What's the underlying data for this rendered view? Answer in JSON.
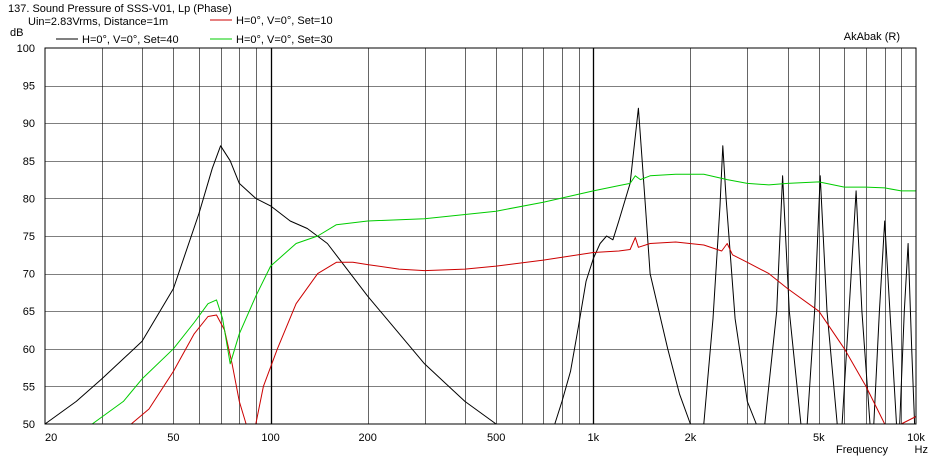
{
  "chart_data": {
    "type": "line",
    "title": "137. Sound Pressure of SSS-V01, Lp (Phase)",
    "subtitle": "Uin=2.83Vrms, Distance=1m",
    "watermark": "AkAbak (R)",
    "ylabel": "dB",
    "xlabel": "Frequency",
    "xunit": "Hz",
    "x_scale": "log",
    "xlim": [
      20,
      10000
    ],
    "ylim": [
      50,
      100
    ],
    "grid": true,
    "legend_position": "top-left",
    "x_tick_labels": [
      {
        "v": 20,
        "label": "20"
      },
      {
        "v": 50,
        "label": "50"
      },
      {
        "v": 100,
        "label": "100"
      },
      {
        "v": 200,
        "label": "200"
      },
      {
        "v": 500,
        "label": "500"
      },
      {
        "v": 1000,
        "label": "1k"
      },
      {
        "v": 2000,
        "label": "2k"
      },
      {
        "v": 5000,
        "label": "5k"
      },
      {
        "v": 10000,
        "label": "10k"
      }
    ],
    "y_ticks": [
      50,
      55,
      60,
      65,
      70,
      75,
      80,
      85,
      90,
      95,
      100
    ],
    "series": [
      {
        "name": "H=0°, V=0°, Set=40",
        "color": "#000000",
        "points": [
          [
            20,
            50
          ],
          [
            25,
            53
          ],
          [
            30,
            56
          ],
          [
            40,
            61
          ],
          [
            50,
            68
          ],
          [
            60,
            78
          ],
          [
            66,
            84
          ],
          [
            70,
            87
          ],
          [
            75,
            85
          ],
          [
            80,
            82
          ],
          [
            90,
            80
          ],
          [
            100,
            79
          ],
          [
            115,
            77
          ],
          [
            130,
            76
          ],
          [
            150,
            74
          ],
          [
            200,
            67
          ],
          [
            300,
            58
          ],
          [
            400,
            53
          ],
          [
            500,
            50
          ],
          [
            760,
            50
          ],
          [
            800,
            53
          ],
          [
            850,
            57
          ],
          [
            900,
            63
          ],
          [
            950,
            69
          ],
          [
            1000,
            72
          ],
          [
            1050,
            74
          ],
          [
            1100,
            75
          ],
          [
            1150,
            74.5
          ],
          [
            1200,
            77
          ],
          [
            1300,
            82
          ],
          [
            1380,
            92
          ],
          [
            1450,
            79
          ],
          [
            1500,
            70
          ],
          [
            1700,
            60
          ],
          [
            1850,
            54
          ],
          [
            2000,
            50
          ],
          [
            2200,
            50
          ],
          [
            2350,
            64
          ],
          [
            2470,
            79
          ],
          [
            2520,
            87
          ],
          [
            2580,
            80
          ],
          [
            2750,
            64
          ],
          [
            3000,
            53
          ],
          [
            3200,
            50
          ],
          [
            3400,
            50
          ],
          [
            3700,
            65
          ],
          [
            3860,
            83
          ],
          [
            4050,
            65
          ],
          [
            4400,
            50
          ],
          [
            4600,
            50
          ],
          [
            4850,
            65
          ],
          [
            5050,
            83
          ],
          [
            5300,
            65
          ],
          [
            5700,
            50
          ],
          [
            5900,
            50
          ],
          [
            6200,
            65
          ],
          [
            6520,
            81
          ],
          [
            6800,
            65
          ],
          [
            7200,
            50
          ],
          [
            7400,
            50
          ],
          [
            7700,
            65
          ],
          [
            8000,
            77
          ],
          [
            8300,
            65
          ],
          [
            8700,
            50
          ],
          [
            8900,
            50
          ],
          [
            9200,
            65
          ],
          [
            9450,
            74
          ],
          [
            9700,
            60
          ],
          [
            9900,
            50
          ],
          [
            10000,
            50
          ]
        ]
      },
      {
        "name": "H=0°, V=0°, Set=10",
        "color": "#cc0000",
        "points": [
          [
            37,
            50
          ],
          [
            42,
            52
          ],
          [
            50,
            57
          ],
          [
            58,
            62
          ],
          [
            64,
            64.3
          ],
          [
            68,
            64.5
          ],
          [
            72,
            62.5
          ],
          [
            76,
            58
          ],
          [
            80,
            53
          ],
          [
            84,
            50
          ],
          [
            90,
            50
          ],
          [
            95,
            55
          ],
          [
            105,
            60
          ],
          [
            120,
            66
          ],
          [
            140,
            70
          ],
          [
            160,
            71.5
          ],
          [
            180,
            71.5
          ],
          [
            200,
            71.2
          ],
          [
            250,
            70.6
          ],
          [
            300,
            70.4
          ],
          [
            400,
            70.6
          ],
          [
            500,
            71
          ],
          [
            700,
            71.8
          ],
          [
            1000,
            72.8
          ],
          [
            1200,
            73
          ],
          [
            1300,
            73.2
          ],
          [
            1350,
            74.8
          ],
          [
            1380,
            73.5
          ],
          [
            1500,
            74
          ],
          [
            1800,
            74.2
          ],
          [
            2200,
            73.8
          ],
          [
            2500,
            73
          ],
          [
            2600,
            74
          ],
          [
            2700,
            72.5
          ],
          [
            3000,
            71.5
          ],
          [
            3500,
            70
          ],
          [
            4000,
            68
          ],
          [
            5000,
            65
          ],
          [
            6000,
            60
          ],
          [
            7000,
            55
          ],
          [
            8000,
            50
          ],
          [
            9000,
            50
          ],
          [
            10000,
            51
          ]
        ]
      },
      {
        "name": "H=0°, V=0°, Set=30",
        "color": "#00cc00",
        "points": [
          [
            28,
            50
          ],
          [
            35,
            53
          ],
          [
            40,
            56
          ],
          [
            50,
            60
          ],
          [
            58,
            63.5
          ],
          [
            64,
            66
          ],
          [
            68,
            66.5
          ],
          [
            71,
            64
          ],
          [
            75,
            58
          ],
          [
            80,
            62
          ],
          [
            90,
            67
          ],
          [
            100,
            71
          ],
          [
            120,
            74
          ],
          [
            140,
            75
          ],
          [
            160,
            76.5
          ],
          [
            200,
            77
          ],
          [
            300,
            77.3
          ],
          [
            500,
            78.3
          ],
          [
            700,
            79.5
          ],
          [
            1000,
            81
          ],
          [
            1200,
            81.7
          ],
          [
            1300,
            82
          ],
          [
            1350,
            83
          ],
          [
            1400,
            82.5
          ],
          [
            1500,
            83
          ],
          [
            1800,
            83.2
          ],
          [
            2200,
            83.2
          ],
          [
            2600,
            82.5
          ],
          [
            3000,
            82
          ],
          [
            3500,
            81.8
          ],
          [
            4000,
            82
          ],
          [
            5000,
            82.2
          ],
          [
            6000,
            81.5
          ],
          [
            7000,
            81.5
          ],
          [
            8000,
            81.4
          ],
          [
            9000,
            81
          ],
          [
            10000,
            81
          ]
        ]
      }
    ]
  }
}
